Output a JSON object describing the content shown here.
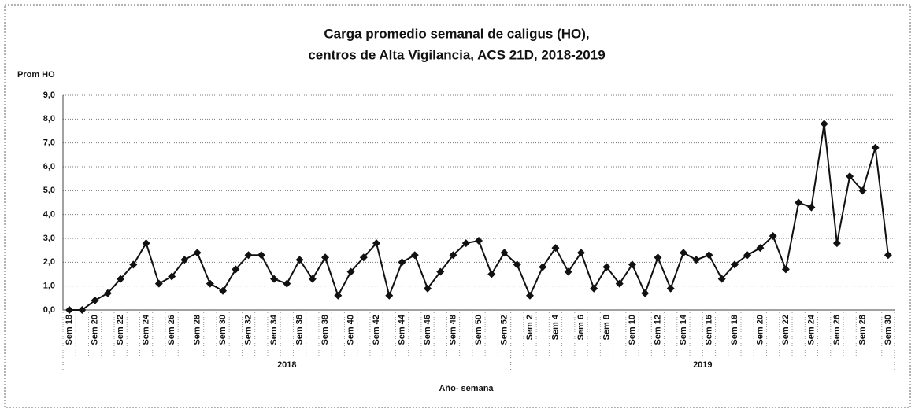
{
  "chart_data": {
    "type": "line",
    "title": [
      "Carga promedio semanal de caligus (HO),",
      "centros de Alta Vigilancia, ACS 21D, 2018-2019"
    ],
    "y_label": "Prom HO",
    "x_label": "Año- semana",
    "groups": [
      "2018",
      "2019"
    ],
    "categories": [
      "Sem 18",
      null,
      "Sem 20",
      null,
      "Sem 22",
      null,
      "Sem 24",
      null,
      "Sem 26",
      null,
      "Sem 28",
      null,
      "Sem 30",
      null,
      "Sem 32",
      null,
      "Sem 34",
      null,
      "Sem 36",
      null,
      "Sem 38",
      null,
      "Sem 40",
      null,
      "Sem 42",
      null,
      "Sem 44",
      null,
      "Sem 46",
      null,
      "Sem 48",
      null,
      "Sem 50",
      null,
      "Sem 52",
      null,
      "Sem 2",
      null,
      "Sem 4",
      null,
      "Sem 6",
      null,
      "Sem 8",
      null,
      "Sem 10",
      null,
      "Sem 12",
      null,
      "Sem 14",
      null,
      "Sem 16",
      null,
      "Sem 18",
      null,
      "Sem 20",
      null,
      "Sem 22",
      null,
      "Sem 24",
      null,
      "Sem 26",
      null,
      "Sem 28",
      null,
      "Sem 30"
    ],
    "series": [
      {
        "name": "Prom HO",
        "color": "#111111",
        "values": [
          0.0,
          0.0,
          0.4,
          0.7,
          1.3,
          1.9,
          2.8,
          1.1,
          1.4,
          2.1,
          2.4,
          1.1,
          0.8,
          1.7,
          2.3,
          2.3,
          1.3,
          1.1,
          2.1,
          1.3,
          2.2,
          0.6,
          1.6,
          2.2,
          2.8,
          0.6,
          2.0,
          2.3,
          0.9,
          1.6,
          2.3,
          2.8,
          2.9,
          1.5,
          2.4,
          1.9,
          0.6,
          1.8,
          2.6,
          1.6,
          2.4,
          0.9,
          1.8,
          1.1,
          1.9,
          0.7,
          2.2,
          0.9,
          2.4,
          2.1,
          2.3,
          1.3,
          1.9,
          2.3,
          2.6,
          3.1,
          1.7,
          4.5,
          4.3,
          7.8,
          2.8,
          5.6,
          5.0,
          6.8,
          2.3
        ]
      }
    ],
    "ylim": [
      0,
      9
    ],
    "yticks": [
      {
        "value": 0,
        "label": "0,0"
      },
      {
        "value": 1,
        "label": "1,0"
      },
      {
        "value": 2,
        "label": "2,0"
      },
      {
        "value": 3,
        "label": "3,0"
      },
      {
        "value": 4,
        "label": "4,0"
      },
      {
        "value": 5,
        "label": "5,0"
      },
      {
        "value": 6,
        "label": "6,0"
      },
      {
        "value": 7,
        "label": "7,0"
      },
      {
        "value": 8,
        "label": "8,0"
      },
      {
        "value": 9,
        "label": "9,0"
      }
    ],
    "grid": true
  }
}
